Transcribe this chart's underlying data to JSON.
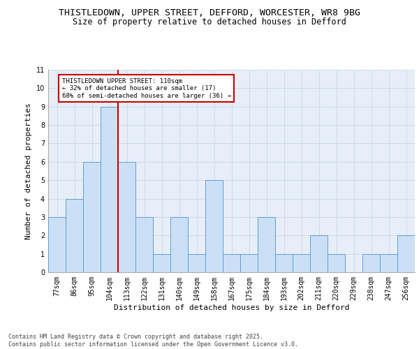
{
  "title_line1": "THISTLEDOWN, UPPER STREET, DEFFORD, WORCESTER, WR8 9BG",
  "title_line2": "Size of property relative to detached houses in Defford",
  "xlabel": "Distribution of detached houses by size in Defford",
  "ylabel": "Number of detached properties",
  "categories": [
    "77sqm",
    "86sqm",
    "95sqm",
    "104sqm",
    "113sqm",
    "122sqm",
    "131sqm",
    "140sqm",
    "149sqm",
    "158sqm",
    "167sqm",
    "175sqm",
    "184sqm",
    "193sqm",
    "202sqm",
    "211sqm",
    "220sqm",
    "229sqm",
    "238sqm",
    "247sqm",
    "256sqm"
  ],
  "values": [
    3,
    4,
    6,
    9,
    6,
    3,
    1,
    3,
    1,
    5,
    1,
    1,
    3,
    1,
    1,
    2,
    1,
    0,
    1,
    1,
    2
  ],
  "bar_color": "#cce0f5",
  "bar_edge_color": "#5a9fd4",
  "grid_color": "#d0d8e8",
  "bg_color": "#e8eef8",
  "red_line_index": 3,
  "annotation_text": "THISTLEDOWN UPPER STREET: 110sqm\n← 32% of detached houses are smaller (17)\n68% of semi-detached houses are larger (36) →",
  "annotation_box_color": "#ffffff",
  "annotation_box_edge": "#cc0000",
  "red_line_color": "#cc0000",
  "ylim": [
    0,
    11
  ],
  "yticks": [
    0,
    1,
    2,
    3,
    4,
    5,
    6,
    7,
    8,
    9,
    10,
    11
  ],
  "footer": "Contains HM Land Registry data © Crown copyright and database right 2025.\nContains public sector information licensed under the Open Government Licence v3.0.",
  "title_fontsize": 9.5,
  "subtitle_fontsize": 8.5,
  "axis_label_fontsize": 8,
  "tick_fontsize": 7,
  "annot_fontsize": 6.5,
  "footer_fontsize": 6
}
